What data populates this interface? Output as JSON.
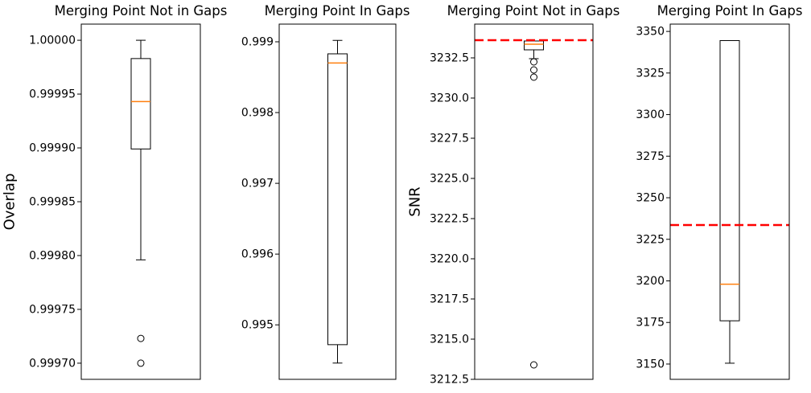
{
  "figure": {
    "background": "#ffffff"
  },
  "colors": {
    "box_edge": "#000000",
    "median": "#ff7f0e",
    "ref_line": "#ff0000",
    "text": "#000000",
    "background": "#ffffff"
  },
  "chart_data": [
    {
      "type": "box",
      "title": "Merging Point Not in Gaps",
      "ylabel": "Overlap",
      "ylim": [
        0.999685,
        1.000015
      ],
      "grid": false,
      "ytick_labels": [
        "1.00000",
        "0.99995",
        "0.99990",
        "0.99985",
        "0.99980",
        "0.99975",
        "0.99970"
      ],
      "ytick_values": [
        1.0,
        0.99995,
        0.9999,
        0.99985,
        0.9998,
        0.99975,
        0.9997
      ],
      "whisker_low": 0.999796,
      "q1": 0.999899,
      "median": 0.999943,
      "q3": 0.999983,
      "whisker_high": 1.0,
      "outliers": [
        0.999723,
        0.9997
      ],
      "ref_line": null
    },
    {
      "type": "box",
      "title": "Merging Point In Gaps",
      "ylabel": "",
      "ylim": [
        0.99423,
        0.99925
      ],
      "grid": false,
      "ytick_labels": [
        "0.999",
        "0.998",
        "0.997",
        "0.996",
        "0.995"
      ],
      "ytick_values": [
        0.999,
        0.998,
        0.997,
        0.996,
        0.995
      ],
      "whisker_low": 0.99446,
      "q1": 0.99472,
      "median": 0.9987,
      "q3": 0.99883,
      "whisker_high": 0.99902,
      "outliers": [],
      "ref_line": null
    },
    {
      "type": "box",
      "title": "Merging Point Not in Gaps",
      "ylabel": "SNR",
      "ylim": [
        3212.5,
        3234.6
      ],
      "grid": false,
      "ytick_labels": [
        "3232.5",
        "3230.0",
        "3227.5",
        "3225.0",
        "3222.5",
        "3220.0",
        "3217.5",
        "3215.0",
        "3212.5"
      ],
      "ytick_values": [
        3232.5,
        3230.0,
        3227.5,
        3225.0,
        3222.5,
        3220.0,
        3217.5,
        3215.0,
        3212.5
      ],
      "whisker_low": 3232.45,
      "q1": 3233.0,
      "median": 3233.35,
      "q3": 3233.55,
      "whisker_high": 3233.55,
      "outliers": [
        3232.25,
        3231.75,
        3231.3,
        3213.4
      ],
      "ref_line": 3233.6
    },
    {
      "type": "box",
      "title": "Merging Point In Gaps",
      "ylabel": "",
      "ylim": [
        3140.8,
        3354.4
      ],
      "grid": false,
      "ytick_labels": [
        "3350",
        "3325",
        "3300",
        "3275",
        "3250",
        "3225",
        "3200",
        "3175",
        "3150"
      ],
      "ytick_values": [
        3350,
        3325,
        3300,
        3275,
        3250,
        3225,
        3200,
        3175,
        3150
      ],
      "whisker_low": 3150.5,
      "q1": 3176.0,
      "median": 3198.0,
      "q3": 3344.5,
      "whisker_high": 3344.5,
      "outliers": [],
      "ref_line": 3233.6
    }
  ]
}
